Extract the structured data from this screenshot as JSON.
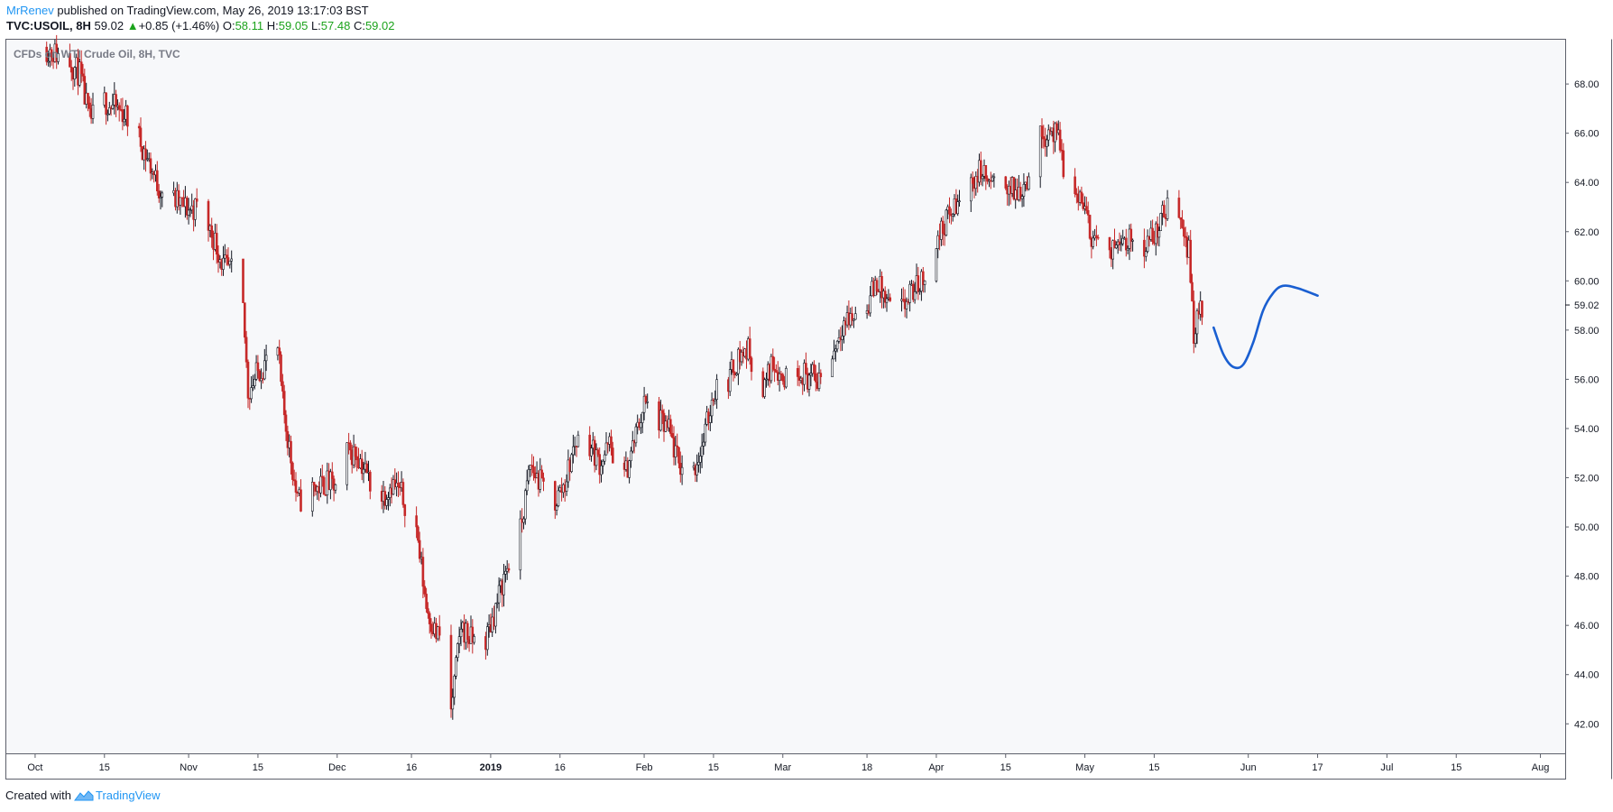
{
  "header": {
    "author": "MrRenev",
    "published_text": " published on TradingView.com, May 26, 2019 13:17:03 BST",
    "symbol": "TVC:USOIL, 8H",
    "last": "59.02",
    "change": "+0.85 (+1.46%)",
    "o_label": "O:",
    "o_value": "58.11",
    "h_label": "H:",
    "h_value": "59.05",
    "l_label": "L:",
    "l_value": "57.48",
    "c_label": "C:",
    "c_value": "59.02"
  },
  "footer": {
    "created_with": "Created with",
    "brand": "TradingView"
  },
  "colors": {
    "bull": "#131722",
    "bear": "#c62828",
    "plot_bg": "#f7f8fa",
    "forecast": "#1a5fd1",
    "positive": "#1ca31c",
    "brand": "#2196f3"
  },
  "chart_data": {
    "type": "candlestick",
    "title": "CFDs on WTI Crude Oil, 8H, TVC",
    "timeframe": "8H",
    "y_axis": {
      "side": "right",
      "range": [
        40.8,
        69.8
      ],
      "ticks": [
        42,
        44,
        46,
        48,
        50,
        52,
        54,
        56,
        58,
        60,
        62,
        64,
        66,
        68
      ],
      "tick_labels": [
        "42.00",
        "44.00",
        "46.00",
        "48.00",
        "50.00",
        "52.00",
        "54.00",
        "56.00",
        "58.00",
        "60.00",
        "62.00",
        "64.00",
        "66.00",
        "68.00"
      ],
      "last_price_label": "59.02",
      "last_price": 59.02
    },
    "x_axis": {
      "range": [
        "2018-09-25",
        "2019-08-06"
      ],
      "ticks": [
        {
          "date": "2018-10-01",
          "label": "Oct"
        },
        {
          "date": "2018-10-15",
          "label": "15"
        },
        {
          "date": "2018-11-01",
          "label": "Nov"
        },
        {
          "date": "2018-11-15",
          "label": "15"
        },
        {
          "date": "2018-12-01",
          "label": "Dec"
        },
        {
          "date": "2018-12-16",
          "label": "16"
        },
        {
          "date": "2019-01-01",
          "label": "2019",
          "bold": true
        },
        {
          "date": "2019-01-15",
          "label": "16"
        },
        {
          "date": "2019-02-01",
          "label": "Feb"
        },
        {
          "date": "2019-02-15",
          "label": "15"
        },
        {
          "date": "2019-03-01",
          "label": "Mar"
        },
        {
          "date": "2019-03-18",
          "label": "18"
        },
        {
          "date": "2019-04-01",
          "label": "Apr"
        },
        {
          "date": "2019-04-15",
          "label": "15"
        },
        {
          "date": "2019-05-01",
          "label": "May"
        },
        {
          "date": "2019-05-15",
          "label": "15"
        },
        {
          "date": "2019-06-03",
          "label": "Jun"
        },
        {
          "date": "2019-06-17",
          "label": "17"
        },
        {
          "date": "2019-07-01",
          "label": "Jul"
        },
        {
          "date": "2019-07-15",
          "label": "15"
        },
        {
          "date": "2019-08-01",
          "label": "Aug"
        }
      ]
    },
    "grid": false,
    "price_path": [
      [
        "2018-10-03",
        69.5
      ],
      [
        "2018-10-08",
        68.9
      ],
      [
        "2018-10-10",
        68.4
      ],
      [
        "2018-10-12",
        66.5
      ],
      [
        "2018-10-15",
        67.3
      ],
      [
        "2018-10-19",
        66.8
      ],
      [
        "2018-10-22",
        65.8
      ],
      [
        "2018-10-26",
        63.8
      ],
      [
        "2018-10-29",
        63.3
      ],
      [
        "2018-11-01",
        62.9
      ],
      [
        "2018-11-03",
        63.0
      ],
      [
        "2018-11-06",
        61.8
      ],
      [
        "2018-11-08",
        60.6
      ],
      [
        "2018-11-10",
        60.3
      ],
      [
        "2018-11-12",
        58.8
      ],
      [
        "2018-11-13",
        55.5
      ],
      [
        "2018-11-15",
        56.3
      ],
      [
        "2018-11-17",
        56.8
      ],
      [
        "2018-11-19",
        57.2
      ],
      [
        "2018-11-20",
        55.0
      ],
      [
        "2018-11-23",
        51.0
      ],
      [
        "2018-11-26",
        51.5
      ],
      [
        "2018-11-29",
        51.8
      ],
      [
        "2018-12-01",
        51.5
      ],
      [
        "2018-12-03",
        53.0
      ],
      [
        "2018-12-05",
        53.0
      ],
      [
        "2018-12-08",
        51.7
      ],
      [
        "2018-12-10",
        51.2
      ],
      [
        "2018-12-12",
        51.8
      ],
      [
        "2018-12-14",
        51.3
      ],
      [
        "2018-12-17",
        49.9
      ],
      [
        "2018-12-19",
        46.8
      ],
      [
        "2018-12-21",
        45.6
      ],
      [
        "2018-12-23",
        45.5
      ],
      [
        "2018-12-24",
        42.5
      ],
      [
        "2018-12-26",
        46.0
      ],
      [
        "2018-12-28",
        45.4
      ],
      [
        "2018-12-31",
        45.4
      ],
      [
        "2019-01-02",
        46.7
      ],
      [
        "2019-01-04",
        48.2
      ],
      [
        "2019-01-07",
        49.8
      ],
      [
        "2019-01-09",
        52.5
      ],
      [
        "2019-01-11",
        51.8
      ],
      [
        "2019-01-14",
        51.0
      ],
      [
        "2019-01-16",
        51.8
      ],
      [
        "2019-01-18",
        53.4
      ],
      [
        "2019-01-20",
        53.8
      ],
      [
        "2019-01-23",
        52.6
      ],
      [
        "2019-01-25",
        53.3
      ],
      [
        "2019-01-28",
        52.0
      ],
      [
        "2019-01-30",
        53.5
      ],
      [
        "2019-02-01",
        55.0
      ],
      [
        "2019-02-04",
        54.3
      ],
      [
        "2019-02-06",
        53.9
      ],
      [
        "2019-02-08",
        52.5
      ],
      [
        "2019-02-11",
        52.3
      ],
      [
        "2019-02-13",
        53.5
      ],
      [
        "2019-02-15",
        55.5
      ],
      [
        "2019-02-18",
        56.0
      ],
      [
        "2019-02-20",
        56.9
      ],
      [
        "2019-02-22",
        57.2
      ],
      [
        "2019-02-25",
        55.5
      ],
      [
        "2019-02-27",
        56.8
      ],
      [
        "2019-03-01",
        56.0
      ],
      [
        "2019-03-04",
        56.5
      ],
      [
        "2019-03-06",
        56.1
      ],
      [
        "2019-03-08",
        56.0
      ],
      [
        "2019-03-11",
        57.0
      ],
      [
        "2019-03-13",
        58.3
      ],
      [
        "2019-03-15",
        58.5
      ],
      [
        "2019-03-18",
        59.0
      ],
      [
        "2019-03-20",
        60.0
      ],
      [
        "2019-03-22",
        59.0
      ],
      [
        "2019-03-25",
        58.8
      ],
      [
        "2019-03-27",
        59.5
      ],
      [
        "2019-03-29",
        60.0
      ],
      [
        "2019-04-01",
        61.5
      ],
      [
        "2019-04-03",
        62.5
      ],
      [
        "2019-04-05",
        63.0
      ],
      [
        "2019-04-08",
        64.0
      ],
      [
        "2019-04-10",
        64.5
      ],
      [
        "2019-04-12",
        63.8
      ],
      [
        "2019-04-15",
        64.0
      ],
      [
        "2019-04-17",
        63.5
      ],
      [
        "2019-04-19",
        64.0
      ],
      [
        "2019-04-22",
        65.8
      ],
      [
        "2019-04-24",
        66.2
      ],
      [
        "2019-04-26",
        65.5
      ],
      [
        "2019-04-28",
        63.0
      ],
      [
        "2019-04-30",
        63.5
      ],
      [
        "2019-05-02",
        62.0
      ],
      [
        "2019-05-04",
        61.5
      ],
      [
        "2019-05-06",
        60.8
      ],
      [
        "2019-05-08",
        62.0
      ],
      [
        "2019-05-10",
        61.6
      ],
      [
        "2019-05-13",
        61.5
      ],
      [
        "2019-05-15",
        61.8
      ],
      [
        "2019-05-17",
        62.8
      ],
      [
        "2019-05-19",
        63.2
      ],
      [
        "2019-05-20",
        63.0
      ],
      [
        "2019-05-22",
        61.2
      ],
      [
        "2019-05-23",
        58.0
      ],
      [
        "2019-05-24",
        58.6
      ],
      [
        "2019-05-25",
        59.02
      ]
    ],
    "forecast": {
      "name": "",
      "color": "#1a5fd1",
      "points": [
        [
          "2019-05-27",
          58.1
        ],
        [
          "2019-05-29",
          57.0
        ],
        [
          "2019-05-31",
          56.5
        ],
        [
          "2019-06-02",
          56.6
        ],
        [
          "2019-06-04",
          57.5
        ],
        [
          "2019-06-06",
          58.8
        ],
        [
          "2019-06-08",
          59.5
        ],
        [
          "2019-06-10",
          59.8
        ],
        [
          "2019-06-13",
          59.7
        ],
        [
          "2019-06-17",
          59.4
        ]
      ]
    }
  }
}
